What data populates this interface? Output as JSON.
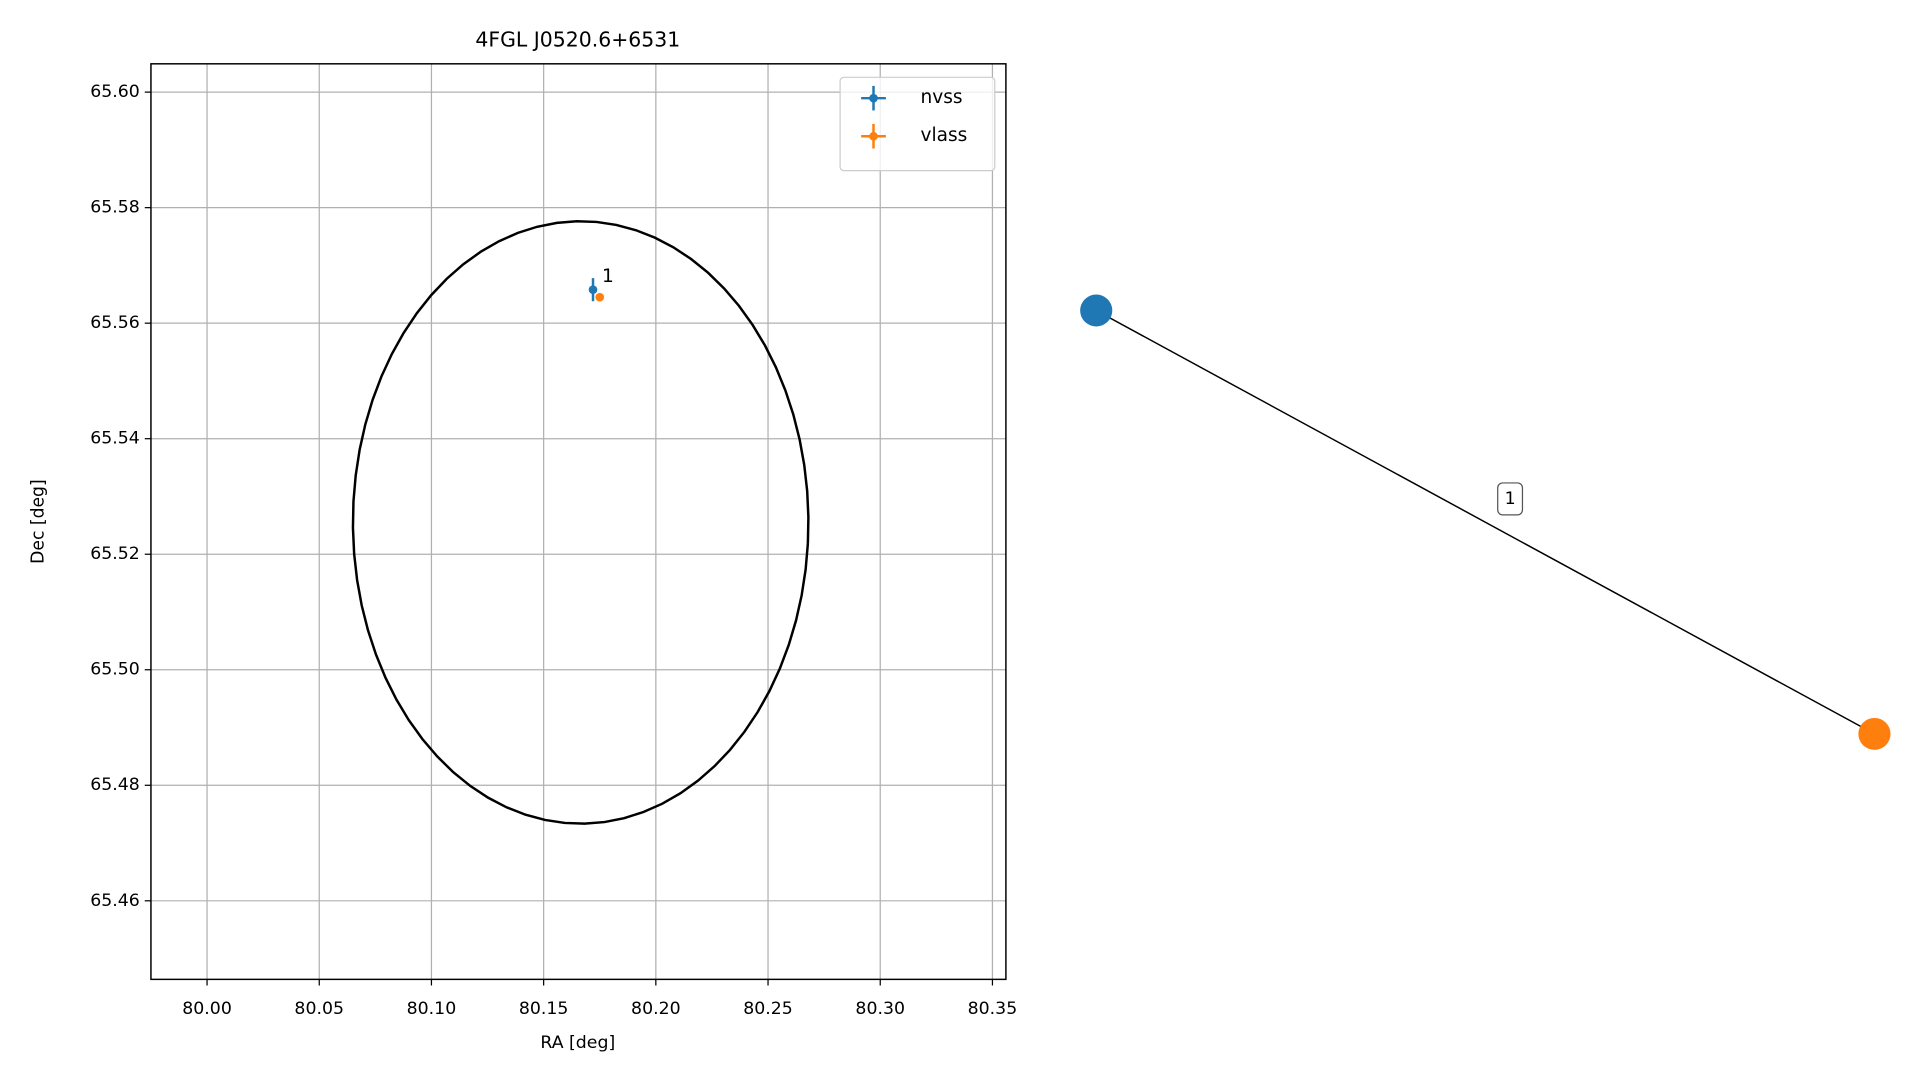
{
  "chart_data": [
    {
      "type": "scatter",
      "title": "4FGL J0520.6+6531",
      "xlabel": "RA [deg]",
      "ylabel": "Dec [deg]",
      "xlim": [
        79.975,
        80.356
      ],
      "ylim": [
        65.4464,
        65.6049
      ],
      "xticks": [
        {
          "value": 80.0,
          "label": "80.00"
        },
        80.05,
        {
          "value": 80.1,
          "label": "80.10"
        },
        80.15,
        {
          "value": 80.2,
          "label": "80.20"
        },
        80.25,
        {
          "value": 80.3,
          "label": "80.30"
        },
        80.35
      ],
      "yticks": [
        65.46,
        65.48,
        {
          "value": 65.5,
          "label": "65.50"
        },
        65.52,
        65.54,
        65.56,
        65.58,
        {
          "value": 65.6,
          "label": "65.60"
        }
      ],
      "grid": true,
      "legend": "upper right",
      "series": [
        {
          "name": "nvss",
          "color": "#1f77b4",
          "x": [
            80.172
          ],
          "values": [
            65.5658
          ],
          "xerr": [
            0.0006
          ],
          "yerr": [
            0.002
          ]
        },
        {
          "name": "vlass",
          "color": "#ff7f0e",
          "x": [
            80.175
          ],
          "values": [
            65.5645
          ],
          "xerr": [
            0.0003
          ],
          "yerr": [
            0.0003
          ]
        }
      ],
      "annotations": [
        {
          "text": "1",
          "x": 80.176,
          "y": 65.568
        }
      ],
      "ellipse": {
        "x": 80.1665,
        "y": 65.5255,
        "width": 0.203,
        "height": 0.1043,
        "angle": -4,
        "color": "#000000"
      }
    },
    {
      "type": "graph",
      "nodes": [
        {
          "color": "#1f77b4"
        },
        {
          "color": "#ff7f0e"
        }
      ],
      "edges": [
        {
          "source": 0,
          "target": 1,
          "label": "1"
        }
      ]
    }
  ]
}
